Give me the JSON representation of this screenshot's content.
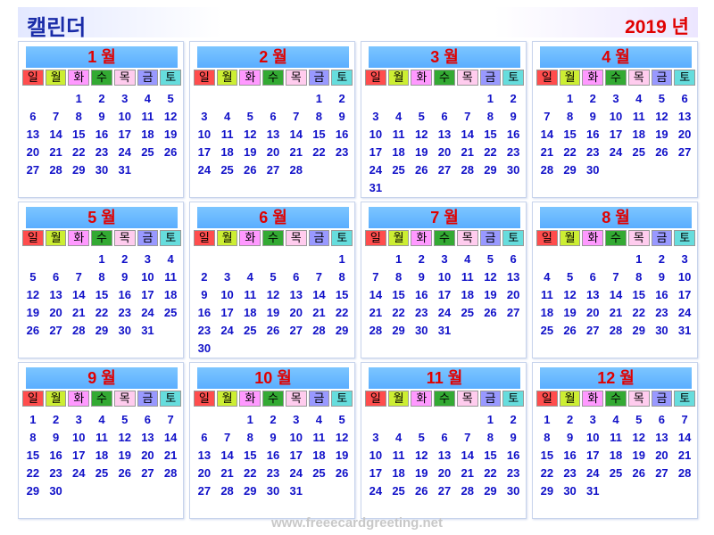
{
  "header": {
    "title": "캘린더",
    "year": "2019 년"
  },
  "weekdays": [
    {
      "label": "일",
      "color": "#ff4d4d"
    },
    {
      "label": "월",
      "color": "#ccee33"
    },
    {
      "label": "화",
      "color": "#ff99ff"
    },
    {
      "label": "수",
      "color": "#33aa33"
    },
    {
      "label": "목",
      "color": "#ffccee"
    },
    {
      "label": "금",
      "color": "#9999ff"
    },
    {
      "label": "토",
      "color": "#66dddd"
    }
  ],
  "months": [
    {
      "label": "1 월",
      "start": 2,
      "days": 31
    },
    {
      "label": "2 월",
      "start": 5,
      "days": 28
    },
    {
      "label": "3 월",
      "start": 5,
      "days": 31
    },
    {
      "label": "4 월",
      "start": 1,
      "days": 30
    },
    {
      "label": "5 월",
      "start": 3,
      "days": 31
    },
    {
      "label": "6 월",
      "start": 6,
      "days": 30
    },
    {
      "label": "7 월",
      "start": 1,
      "days": 31
    },
    {
      "label": "8 월",
      "start": 4,
      "days": 31
    },
    {
      "label": "9 월",
      "start": 0,
      "days": 30
    },
    {
      "label": "10 월",
      "start": 2,
      "days": 31
    },
    {
      "label": "11 월",
      "start": 5,
      "days": 30
    },
    {
      "label": "12 월",
      "start": 0,
      "days": 31
    }
  ],
  "footer": {
    "text": "www.freeecardgreeting.net"
  }
}
